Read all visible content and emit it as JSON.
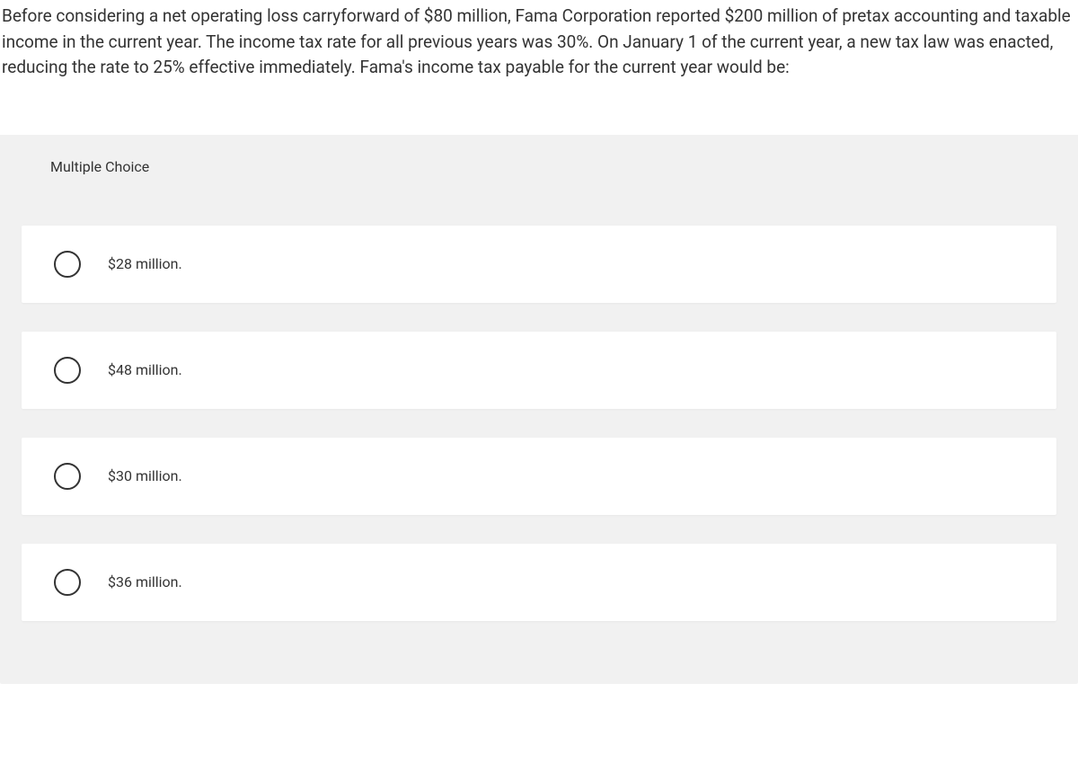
{
  "question": {
    "stem": "Before considering a net operating loss carryforward of $80 million, Fama Corporation reported $200 million of pretax accounting and taxable income in the current year. The income tax rate for all previous years was 30%. On January 1 of the current year, a new tax law was enacted, reducing the rate to 25% effective immediately. Fama's income tax payable for the current year would be:"
  },
  "answer_section": {
    "header": "Multiple Choice",
    "options": [
      {
        "label": "$28 million."
      },
      {
        "label": "$48 million."
      },
      {
        "label": "$30 million."
      },
      {
        "label": "$36 million."
      }
    ]
  },
  "colors": {
    "page_bg": "#ffffff",
    "panel_bg": "#f1f1f1",
    "card_bg": "#ffffff",
    "text": "#333333",
    "radio_border": "#333333"
  }
}
